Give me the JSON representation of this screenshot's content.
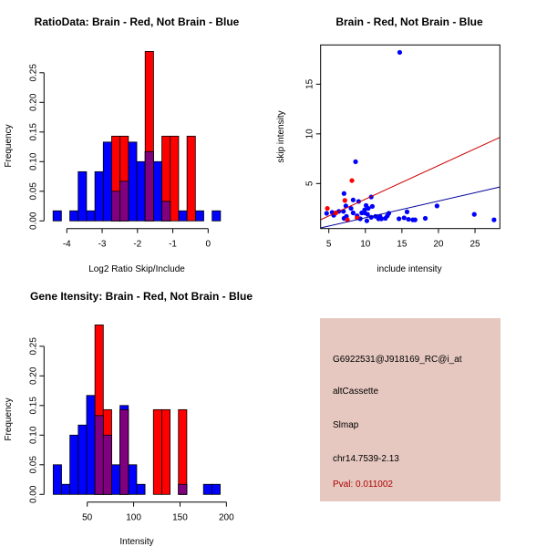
{
  "chart_data": [
    {
      "type": "bar",
      "subtype": "overlaid-histogram",
      "title": "RatioData: Brain - Red, Not Brain - Blue",
      "xlabel": "Log2 Ratio Skip/Include",
      "ylabel": "Frequency",
      "xlim": [
        -4.39,
        0.35
      ],
      "ylim": [
        0,
        0.286
      ],
      "xticks": [
        -4,
        -3,
        -2,
        -1,
        0
      ],
      "yticks": [
        0.0,
        0.05,
        0.1,
        0.15,
        0.2,
        0.25
      ],
      "ytick_labels": [
        "0.00",
        "0.05",
        "0.10",
        "0.15",
        "0.20",
        "0.25"
      ],
      "bin_start": -4.39,
      "bin_width": 0.237,
      "series": [
        {
          "name": "Not Brain",
          "color": "#0000ff",
          "values": [
            0.017,
            0,
            0.017,
            0.083,
            0.017,
            0.083,
            0.133,
            0.05,
            0.067,
            0.133,
            0.1,
            0.117,
            0.1,
            0.033,
            0,
            0.017,
            0,
            0.017,
            0,
            0.017
          ]
        },
        {
          "name": "Brain",
          "color": "#ff0000",
          "values": [
            0,
            0,
            0,
            0,
            0,
            0,
            0,
            0.143,
            0.143,
            0,
            0,
            0.286,
            0,
            0.143,
            0.143,
            0,
            0.143,
            0,
            0,
            0
          ]
        }
      ],
      "overlap_color": "#800080"
    },
    {
      "type": "scatter",
      "title": "Brain - Red, Not Brain - Blue",
      "xlabel": "include intensity",
      "ylabel": "skip intensity",
      "xlim": [
        3.88,
        28.4
      ],
      "ylim": [
        0.47,
        18.95
      ],
      "xticks": [
        5,
        10,
        15,
        20,
        25
      ],
      "yticks": [
        5,
        10,
        15
      ],
      "series": [
        {
          "name": "Not Brain",
          "color": "#0000ff",
          "x": [
            14.7,
            8.66,
            7.08,
            8.33,
            10.8,
            9.08,
            4.7,
            5.46,
            5.67,
            6.37,
            7.0,
            7.33,
            8.04,
            8.33,
            7.08,
            7.41,
            8.87,
            9.3,
            9.5,
            9.9,
            10.1,
            10.4,
            10.95,
            9.9,
            10.3,
            10.2,
            10.8,
            11.4,
            11.8,
            12.0,
            12.2,
            12.74,
            13.0,
            13.2,
            14.6,
            15.3,
            15.7,
            15.9,
            16.5,
            16.8,
            18.2,
            19.8,
            24.9,
            27.6
          ],
          "y": [
            18.2,
            7.2,
            4.0,
            3.35,
            3.65,
            3.2,
            2.0,
            2.1,
            1.8,
            2.2,
            2.2,
            2.75,
            2.5,
            2.05,
            1.5,
            1.7,
            1.75,
            1.45,
            2.05,
            2.35,
            2.8,
            2.5,
            2.7,
            2.05,
            1.9,
            1.25,
            1.6,
            1.7,
            1.45,
            1.7,
            1.45,
            1.5,
            1.75,
            2.0,
            1.45,
            1.55,
            2.15,
            1.4,
            1.35,
            1.35,
            1.5,
            2.75,
            1.9,
            1.35
          ],
          "fit": {
            "slope": 0.168,
            "intercept": -0.12
          }
        },
        {
          "name": "Brain",
          "color": "#ff0000",
          "x": [
            4.8,
            5.96,
            7.2,
            8.16,
            7.54,
            8.87
          ],
          "y": [
            2.5,
            2.05,
            3.3,
            5.3,
            1.35,
            1.55
          ],
          "fit": {
            "slope": 0.338,
            "intercept": 0.05
          }
        }
      ]
    },
    {
      "type": "bar",
      "subtype": "overlaid-histogram",
      "title": "Gene Itensity: Brain - Red, Not Brain - Blue",
      "xlabel": "Intensity",
      "ylabel": "Frequency",
      "xlim": [
        13.3,
        193.3
      ],
      "ylim": [
        0,
        0.286
      ],
      "xticks": [
        50,
        100,
        150,
        200
      ],
      "yticks": [
        0.0,
        0.05,
        0.1,
        0.15,
        0.2,
        0.25
      ],
      "ytick_labels": [
        "0.00",
        "0.05",
        "0.10",
        "0.15",
        "0.20",
        "0.25"
      ],
      "bin_start": 13.3,
      "bin_width": 9.0,
      "series": [
        {
          "name": "Not Brain",
          "color": "#0000ff",
          "values": [
            0.05,
            0.017,
            0.1,
            0.117,
            0.167,
            0.133,
            0.1,
            0.05,
            0.15,
            0.05,
            0.017,
            0,
            0,
            0,
            0,
            0.017,
            0,
            0,
            0.017,
            0.017
          ]
        },
        {
          "name": "Brain",
          "color": "#ff0000",
          "values": [
            0,
            0,
            0,
            0,
            0,
            0.286,
            0.143,
            0,
            0.143,
            0,
            0,
            0,
            0.143,
            0.143,
            0,
            0.143,
            0,
            0,
            0,
            0
          ]
        }
      ],
      "overlap_color": "#800080"
    }
  ],
  "info": {
    "probe": "G6922531@J918169_RC@i_at",
    "event": "altCassette",
    "gene": "Slmap",
    "location": "chr14.7539-2.13",
    "pval": "Pval: 0.011002",
    "pval_color": "#aa0000",
    "background": "#e6c8c0"
  }
}
